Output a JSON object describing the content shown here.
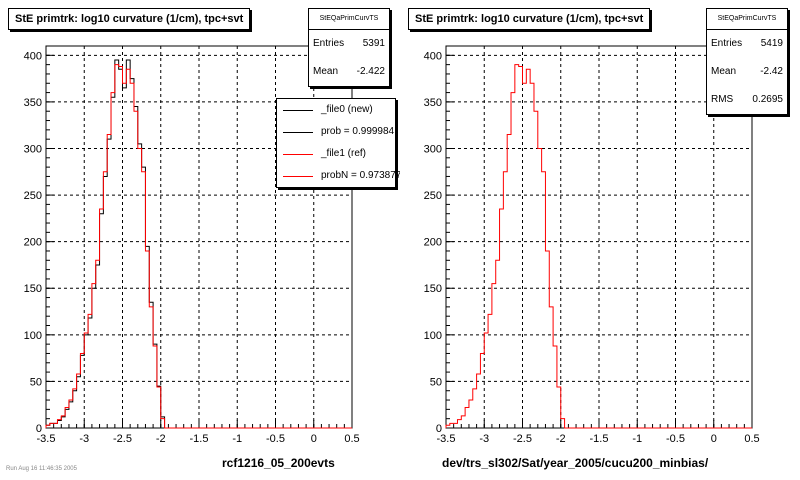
{
  "left_panel": {
    "title": "StE primtrk: log10 curvature (1/cm), tpc+svt",
    "stats_title": "StEQaPrimCurvTS",
    "stats": [
      {
        "label": "Entries",
        "value": "5391"
      },
      {
        "label": "Mean",
        "value": "-2.422"
      }
    ],
    "legend": [
      {
        "label": "_file0 (new)",
        "color": "#000000"
      },
      {
        "label": "prob = 0.999984",
        "color": "#000000"
      },
      {
        "label": "_file1 (ref)",
        "color": "#ff0000"
      },
      {
        "label": "probN = 0.973877",
        "color": "#ff0000"
      }
    ],
    "footer": "rcf1216_05_200evts",
    "note": "Run Aug 16 11:46:35 2005"
  },
  "right_panel": {
    "title": "StE primtrk: log10 curvature (1/cm), tpc+svt",
    "stats_title": "StEQaPrimCurvTS",
    "stats": [
      {
        "label": "Entries",
        "value": "5419"
      },
      {
        "label": "Mean",
        "value": "-2.42"
      },
      {
        "label": "RMS",
        "value": "0.2695"
      }
    ],
    "footer": "dev/trs_sl302/Sat/year_2005/cucu200_minbias/"
  },
  "chart_data": [
    {
      "type": "histogram",
      "title": "StE primtrk: log10 curvature (1/cm), tpc+svt",
      "xlabel": "rcf1216_05_200evts",
      "xlim": [
        -3.5,
        0.5
      ],
      "ylim": [
        0,
        410
      ],
      "xticks": [
        -3.5,
        -3,
        -2.5,
        -2,
        -1.5,
        -1,
        -0.5,
        0,
        0.5
      ],
      "yticks": [
        0,
        50,
        100,
        150,
        200,
        250,
        300,
        350,
        400
      ],
      "xtick_labels": [
        "-3.5",
        "-3",
        "-2.5",
        "-2",
        "-1.5",
        "-1",
        "-0.5",
        "0",
        "0.5"
      ],
      "ytick_labels": [
        "0",
        "50",
        "100",
        "150",
        "200",
        "250",
        "300",
        "350",
        "400"
      ],
      "grid": true,
      "bin_start": -3.5,
      "bin_width": 0.05,
      "series": [
        {
          "name": "_file0 (new)",
          "color": "#000000",
          "values": [
            3,
            5,
            5,
            8,
            12,
            20,
            28,
            40,
            55,
            78,
            100,
            118,
            150,
            175,
            230,
            270,
            310,
            355,
            395,
            385,
            365,
            395,
            375,
            345,
            305,
            280,
            195,
            135,
            90,
            45,
            12,
            0,
            0,
            0,
            0,
            0,
            0,
            0,
            0,
            0,
            0,
            0,
            0,
            0,
            0,
            0,
            0,
            0,
            0,
            0,
            0,
            0,
            0,
            0,
            0,
            0,
            0,
            0,
            0,
            0,
            0,
            0,
            0,
            0,
            0,
            0,
            0,
            0,
            0,
            0,
            0,
            0,
            0,
            0,
            0,
            0,
            0,
            0,
            0,
            0
          ]
        },
        {
          "name": "_file1 (ref)",
          "color": "#ff0000",
          "values": [
            3,
            5,
            5,
            9,
            13,
            22,
            30,
            42,
            58,
            80,
            102,
            122,
            155,
            180,
            235,
            275,
            315,
            360,
            390,
            388,
            370,
            385,
            370,
            340,
            300,
            275,
            190,
            130,
            88,
            44,
            10,
            0,
            0,
            0,
            0,
            0,
            0,
            0,
            0,
            0,
            0,
            0,
            0,
            0,
            0,
            0,
            0,
            0,
            0,
            0,
            0,
            0,
            0,
            0,
            0,
            0,
            0,
            0,
            0,
            0,
            0,
            0,
            0,
            0,
            0,
            0,
            0,
            0,
            0,
            0,
            0,
            0,
            0,
            0,
            0,
            0,
            0,
            0,
            0,
            0
          ]
        }
      ]
    },
    {
      "type": "histogram",
      "title": "StE primtrk: log10 curvature (1/cm), tpc+svt",
      "xlabel": "dev/trs_sl302/Sat/year_2005/cucu200_minbias/",
      "xlim": [
        -3.5,
        0.5
      ],
      "ylim": [
        0,
        410
      ],
      "xticks": [
        -3.5,
        -3,
        -2.5,
        -2,
        -1.5,
        -1,
        -0.5,
        0,
        0.5
      ],
      "yticks": [
        0,
        50,
        100,
        150,
        200,
        250,
        300,
        350,
        400
      ],
      "xtick_labels": [
        "-3.5",
        "-3",
        "-2.5",
        "-2",
        "-1.5",
        "-1",
        "-0.5",
        "0",
        "0.5"
      ],
      "ytick_labels": [
        "0",
        "50",
        "100",
        "150",
        "200",
        "250",
        "300",
        "350",
        "400"
      ],
      "grid": true,
      "bin_start": -3.5,
      "bin_width": 0.05,
      "series": [
        {
          "name": "",
          "color": "#ff0000",
          "values": [
            3,
            5,
            5,
            9,
            13,
            22,
            30,
            42,
            58,
            80,
            102,
            122,
            155,
            180,
            235,
            275,
            315,
            360,
            390,
            388,
            370,
            385,
            370,
            340,
            300,
            275,
            190,
            130,
            88,
            44,
            10,
            0,
            0,
            0,
            0,
            0,
            0,
            0,
            0,
            0,
            0,
            0,
            0,
            0,
            0,
            0,
            0,
            0,
            0,
            0,
            0,
            0,
            0,
            0,
            0,
            0,
            0,
            0,
            0,
            0,
            0,
            0,
            0,
            0,
            0,
            0,
            0,
            0,
            0,
            0,
            0,
            0,
            0,
            0,
            0,
            0,
            0,
            0,
            0,
            0
          ]
        }
      ]
    }
  ]
}
